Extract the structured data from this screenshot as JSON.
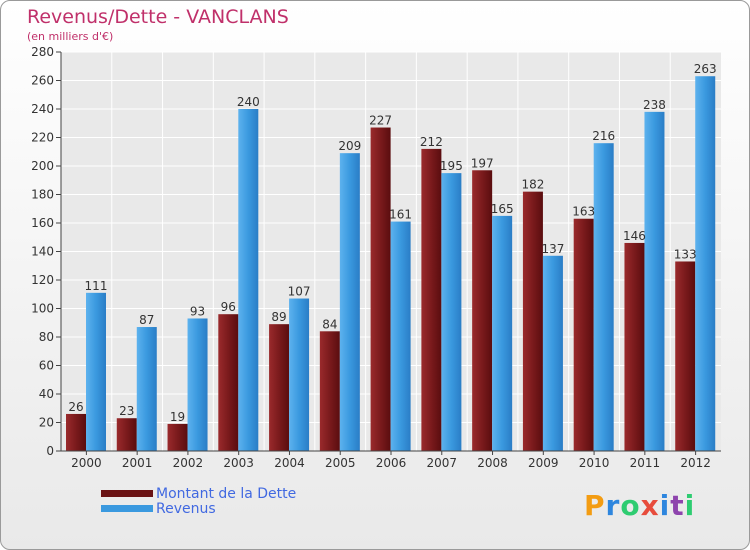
{
  "header": {
    "title": "Revenus/Dette - VANCLANS",
    "subtitle": "(en milliers d'€)"
  },
  "colors": {
    "dette": "#7a1a1c",
    "revenus": "#3a99df",
    "title": "#c0306a",
    "legend_text": "#4169e1"
  },
  "chart_data": {
    "type": "bar",
    "title": "Revenus/Dette - VANCLANS",
    "ylabel": "(en milliers d'€)",
    "ylim": [
      0,
      280
    ],
    "yticks": [
      0,
      20,
      40,
      60,
      80,
      100,
      120,
      140,
      160,
      180,
      200,
      220,
      240,
      260,
      280
    ],
    "grid": true,
    "legend_position": "bottom-left",
    "categories": [
      "2000",
      "2001",
      "2002",
      "2003",
      "2004",
      "2005",
      "2006",
      "2007",
      "2008",
      "2009",
      "2010",
      "2011",
      "2012"
    ],
    "series": [
      {
        "name": "Montant de la Dette",
        "values": [
          26,
          23,
          19,
          96,
          89,
          84,
          227,
          212,
          197,
          182,
          163,
          146,
          133
        ]
      },
      {
        "name": "Revenus",
        "values": [
          111,
          87,
          93,
          240,
          107,
          209,
          161,
          195,
          165,
          137,
          216,
          238,
          263
        ]
      }
    ]
  },
  "logo": {
    "letters": [
      "P",
      "r",
      "o",
      "x",
      "i",
      "t",
      "i"
    ]
  }
}
